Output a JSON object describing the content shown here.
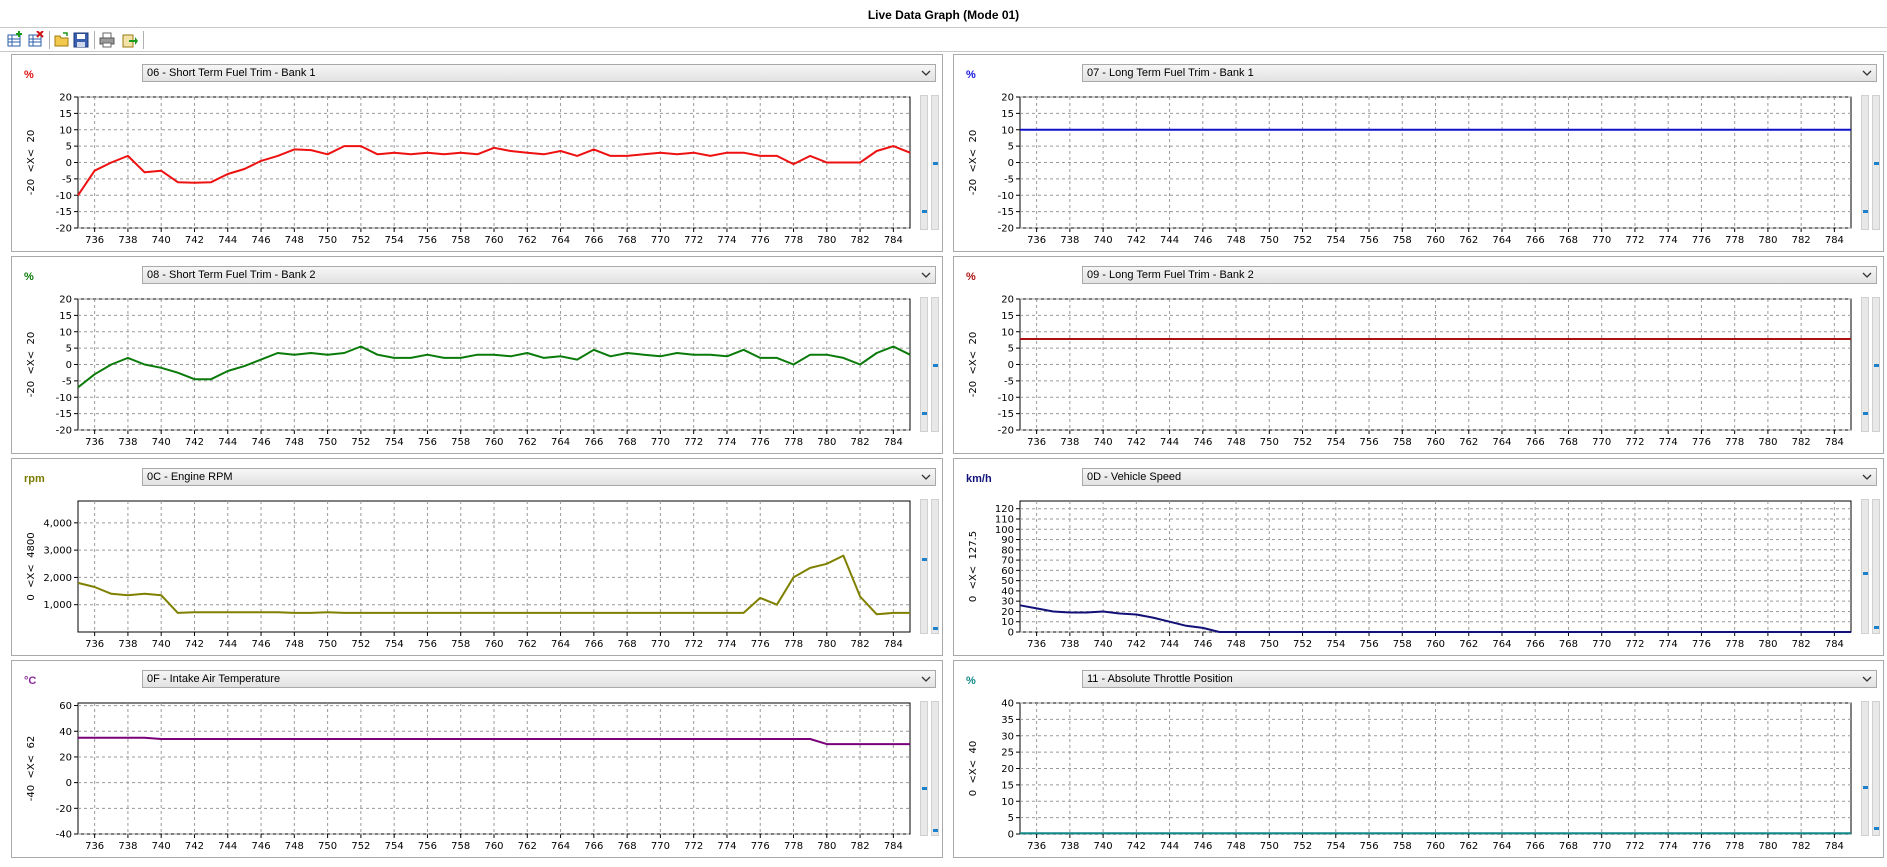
{
  "window": {
    "title": "Live Data Graph (Mode 01)"
  },
  "toolbar": {
    "buttons": [
      {
        "name": "add-graph-button",
        "icon": "add-graph-icon"
      },
      {
        "name": "remove-graph-button",
        "icon": "remove-graph-icon"
      },
      {
        "name": "open-button",
        "icon": "folder-open-icon"
      },
      {
        "name": "save-button",
        "icon": "floppy-icon"
      },
      {
        "name": "print-button",
        "icon": "printer-icon"
      },
      {
        "name": "export-button",
        "icon": "export-icon"
      }
    ]
  },
  "x_ticks": [
    "736",
    "738",
    "740",
    "742",
    "744",
    "746",
    "748",
    "750",
    "752",
    "754",
    "756",
    "758",
    "760",
    "762",
    "764",
    "766",
    "768",
    "770",
    "772",
    "774",
    "776",
    "778",
    "780",
    "782",
    "784"
  ],
  "chart_data": [
    {
      "id": "stft1",
      "type": "line",
      "unit": "%",
      "unit_color": "#e01010",
      "pid_label": "06 - Short Term Fuel Trim - Bank 1",
      "range_label": "-20  <X<  20",
      "ylim": [
        -20,
        20
      ],
      "yticks": [
        "-20",
        "-15",
        "-10",
        "-5",
        "0",
        "5",
        "10",
        "15",
        "20"
      ],
      "ytick_vals": [
        -20,
        -15,
        -10,
        -5,
        0,
        5,
        10,
        15,
        20
      ],
      "line_color": "#ee1111",
      "x": [
        735,
        736,
        737,
        738,
        739,
        740,
        741,
        742,
        743,
        744,
        745,
        746,
        747,
        748,
        749,
        750,
        751,
        752,
        753,
        754,
        755,
        756,
        757,
        758,
        759,
        760,
        761,
        762,
        763,
        764,
        765,
        766,
        767,
        768,
        769,
        770,
        771,
        772,
        773,
        774,
        775,
        776,
        777,
        778,
        779,
        780,
        781,
        782,
        783,
        784,
        785
      ],
      "y": [
        -10,
        -2.5,
        0,
        2,
        -3,
        -2.5,
        -6,
        -6.2,
        -6,
        -3.5,
        -2,
        0.5,
        2,
        4,
        3.8,
        2.5,
        5,
        5,
        2.5,
        3,
        2.5,
        3,
        2.5,
        3,
        2.5,
        4.5,
        3.5,
        3,
        2.5,
        3.5,
        2,
        4,
        2,
        2,
        2.5,
        3,
        2.5,
        3,
        2,
        3,
        3,
        2,
        2,
        -0.5,
        2,
        0,
        0,
        0,
        3.5,
        5,
        3
      ],
      "markers": [
        -14.6,
        0
      ]
    },
    {
      "id": "ltft1",
      "type": "line",
      "unit": "%",
      "unit_color": "#1111dd",
      "pid_label": "07 - Long Term Fuel Trim - Bank 1",
      "range_label": "-20  <X<  20",
      "ylim": [
        -20,
        20
      ],
      "yticks": [
        "-20",
        "-15",
        "-10",
        "-5",
        "0",
        "5",
        "10",
        "15",
        "20"
      ],
      "ytick_vals": [
        -20,
        -15,
        -10,
        -5,
        0,
        5,
        10,
        15,
        20
      ],
      "line_color": "#1111cc",
      "x": [
        735,
        785
      ],
      "y": [
        10,
        10
      ],
      "markers": [
        -14.6,
        0
      ]
    },
    {
      "id": "stft2",
      "type": "line",
      "unit": "%",
      "unit_color": "#0a7a0a",
      "pid_label": "08 - Short Term Fuel Trim - Bank 2",
      "range_label": "-20  <X<  20",
      "ylim": [
        -20,
        20
      ],
      "yticks": [
        "-20",
        "-15",
        "-10",
        "-5",
        "0",
        "5",
        "10",
        "15",
        "20"
      ],
      "ytick_vals": [
        -20,
        -15,
        -10,
        -5,
        0,
        5,
        10,
        15,
        20
      ],
      "line_color": "#0a7a0a",
      "x": [
        735,
        736,
        737,
        738,
        739,
        740,
        741,
        742,
        743,
        744,
        745,
        746,
        747,
        748,
        749,
        750,
        751,
        752,
        753,
        754,
        755,
        756,
        757,
        758,
        759,
        760,
        761,
        762,
        763,
        764,
        765,
        766,
        767,
        768,
        769,
        770,
        771,
        772,
        773,
        774,
        775,
        776,
        777,
        778,
        779,
        780,
        781,
        782,
        783,
        784,
        785
      ],
      "y": [
        -7,
        -3,
        0,
        2,
        0,
        -1,
        -2.5,
        -4.5,
        -4.5,
        -2,
        -0.5,
        1.5,
        3.5,
        3,
        3.5,
        3,
        3.5,
        5.5,
        3,
        2,
        2,
        3,
        2,
        2,
        3,
        3,
        2.5,
        3.5,
        2,
        2.5,
        1.5,
        4.5,
        2.5,
        3.5,
        3,
        2.5,
        3.5,
        3,
        3,
        2.5,
        4.5,
        2,
        2,
        0,
        3,
        3,
        2,
        0,
        3.5,
        5.5,
        3
      ],
      "markers": [
        -14.6,
        0
      ]
    },
    {
      "id": "ltft2",
      "type": "line",
      "unit": "%",
      "unit_color": "#aa1111",
      "pid_label": "09 - Long Term Fuel Trim - Bank 2",
      "range_label": "-20  <X<  20",
      "ylim": [
        -20,
        20
      ],
      "yticks": [
        "-20",
        "-15",
        "-10",
        "-5",
        "0",
        "5",
        "10",
        "15",
        "20"
      ],
      "ytick_vals": [
        -20,
        -15,
        -10,
        -5,
        0,
        5,
        10,
        15,
        20
      ],
      "line_color": "#aa1111",
      "x": [
        735,
        785
      ],
      "y": [
        7.8,
        7.8
      ],
      "markers": [
        -14.6,
        0
      ]
    },
    {
      "id": "rpm",
      "type": "line",
      "unit": "rpm",
      "unit_color": "#7a7a00",
      "pid_label": "0C - Engine RPM",
      "range_label": "0  <X<  4800",
      "ylim": [
        0,
        4800
      ],
      "yticks": [
        "1,000",
        "2,000",
        "3,000",
        "4,000"
      ],
      "ytick_vals": [
        1000,
        2000,
        3000,
        4000
      ],
      "line_color": "#808000",
      "x": [
        735,
        736,
        737,
        738,
        739,
        740,
        741,
        742,
        743,
        744,
        745,
        746,
        747,
        748,
        749,
        750,
        751,
        752,
        770,
        775,
        776,
        777,
        778,
        779,
        780,
        781,
        782,
        783,
        784,
        785
      ],
      "y": [
        1800,
        1650,
        1400,
        1350,
        1400,
        1350,
        700,
        720,
        720,
        720,
        720,
        720,
        720,
        700,
        700,
        720,
        700,
        700,
        700,
        700,
        1250,
        1000,
        2000,
        2350,
        2500,
        2800,
        1300,
        650,
        700,
        700
      ],
      "markers": [
        2700,
        200
      ]
    },
    {
      "id": "speed",
      "type": "line",
      "unit": "km/h",
      "unit_color": "#11117a",
      "pid_label": "0D - Vehicle Speed",
      "range_label": "0  <X<  127.5",
      "ylim": [
        0,
        127.5
      ],
      "yticks": [
        "0",
        "10",
        "20",
        "30",
        "40",
        "50",
        "60",
        "70",
        "80",
        "90",
        "100",
        "110",
        "120"
      ],
      "ytick_vals": [
        0,
        10,
        20,
        30,
        40,
        50,
        60,
        70,
        80,
        90,
        100,
        110,
        120
      ],
      "line_color": "#111177",
      "x": [
        735,
        736,
        737,
        738,
        739,
        740,
        741,
        742,
        743,
        744,
        745,
        746,
        747,
        748,
        785
      ],
      "y": [
        26,
        23,
        20,
        19,
        19,
        20,
        18,
        17,
        14,
        10,
        6,
        4,
        0,
        0,
        0
      ],
      "markers": [
        58,
        6
      ]
    },
    {
      "id": "iat",
      "type": "line",
      "unit": "°C",
      "unit_color": "#8a2a9a",
      "pid_label": "0F - Intake Air Temperature",
      "range_label": "-40  <X<  62",
      "ylim": [
        -40,
        62
      ],
      "yticks": [
        "-40",
        "-20",
        "0",
        "20",
        "40",
        "60"
      ],
      "ytick_vals": [
        -40,
        -20,
        0,
        20,
        40,
        60
      ],
      "line_color": "#7a007a",
      "x": [
        735,
        739,
        740,
        779,
        780,
        785
      ],
      "y": [
        35,
        35,
        34,
        34,
        30,
        30
      ],
      "markers": [
        -4,
        -36
      ]
    },
    {
      "id": "tps",
      "type": "line",
      "unit": "%",
      "unit_color": "#118888",
      "pid_label": "11 - Absolute Throttle Position",
      "range_label": "0  <X<  40",
      "ylim": [
        0,
        40
      ],
      "yticks": [
        "0",
        "5",
        "10",
        "15",
        "20",
        "25",
        "30",
        "35",
        "40"
      ],
      "ytick_vals": [
        0,
        5,
        10,
        15,
        20,
        25,
        30,
        35,
        40
      ],
      "line_color": "#118888",
      "x": [
        735,
        785
      ],
      "y": [
        0.2,
        0.2
      ],
      "markers": [
        14.5,
        2
      ]
    }
  ]
}
